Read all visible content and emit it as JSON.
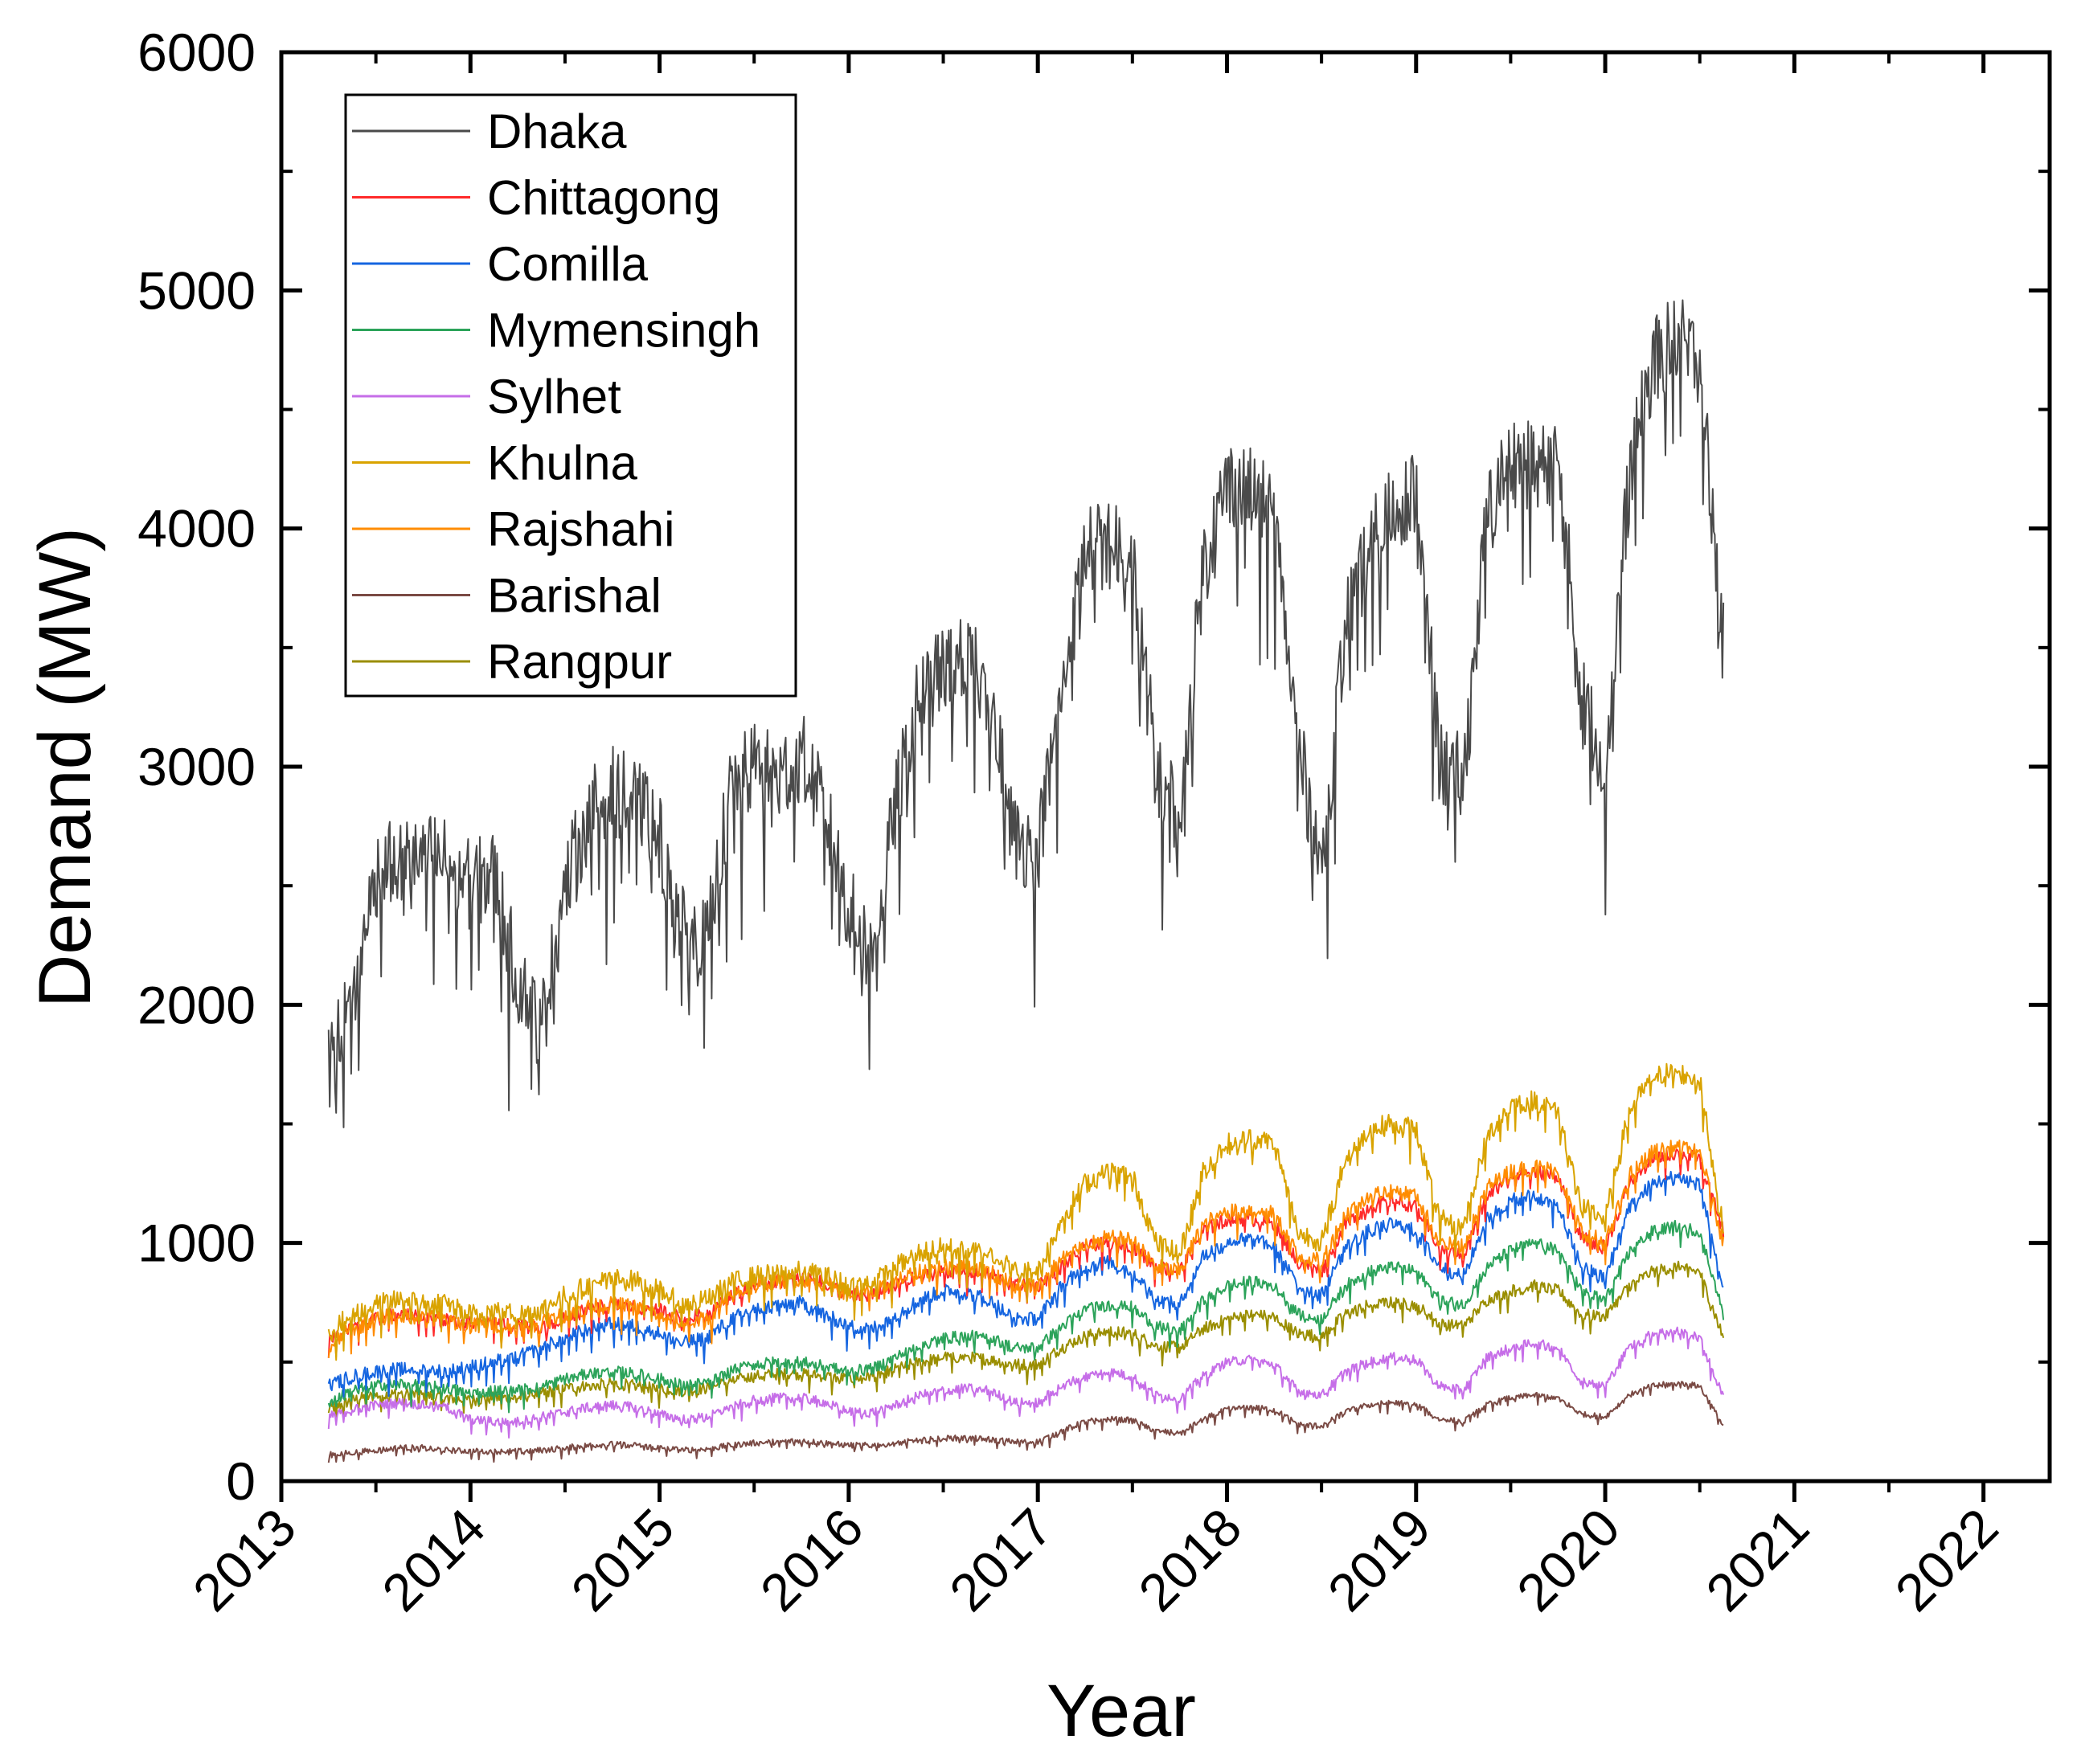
{
  "chart_data": {
    "type": "line",
    "title": "",
    "xlabel": "Year",
    "ylabel": "Demand (MW)",
    "xlim": [
      2013.0,
      2022.35
    ],
    "ylim": [
      0,
      6000
    ],
    "x_ticks": [
      2013,
      2014,
      2015,
      2016,
      2017,
      2018,
      2019,
      2020,
      2021,
      2022
    ],
    "x_tick_labels": [
      "2013",
      "2014",
      "2015",
      "2016",
      "2017",
      "2018",
      "2019",
      "2020",
      "2021",
      "2022"
    ],
    "y_ticks": [
      0,
      1000,
      2000,
      3000,
      4000,
      5000,
      6000
    ],
    "y_tick_labels": [
      "0",
      "1000",
      "2000",
      "3000",
      "4000",
      "5000",
      "6000"
    ],
    "grid": false,
    "legend_position": "top-left",
    "x_sample_start": 2013.25,
    "x_sample_step": 0.125,
    "series": [
      {
        "name": "Dhaka",
        "color": "#4a4a4a",
        "noise": 380,
        "values": [
          1750,
          2000,
          2550,
          2600,
          2650,
          2600,
          2500,
          2550,
          2100,
          1900,
          2500,
          2800,
          2900,
          2850,
          2700,
          2300,
          2250,
          2900,
          3000,
          2950,
          3050,
          2800,
          2400,
          2200,
          2850,
          3300,
          3400,
          3450,
          3300,
          2700,
          2650,
          3300,
          3900,
          3950,
          3850,
          3000,
          2800,
          3850,
          4200,
          4150,
          4050,
          3100,
          2550,
          3600,
          3900,
          4100,
          4150,
          3000,
          2950,
          4050,
          4300,
          4250,
          4300,
          3300,
          3000,
          4200,
          4700,
          4800,
          4700,
          3500
        ]
      },
      {
        "name": "Chittagong",
        "color": "#ff2a2a",
        "noise": 60,
        "values": [
          580,
          640,
          680,
          700,
          690,
          680,
          660,
          670,
          650,
          640,
          680,
          720,
          740,
          730,
          720,
          680,
          700,
          780,
          820,
          840,
          850,
          830,
          780,
          780,
          820,
          860,
          880,
          880,
          870,
          820,
          820,
          900,
          980,
          1000,
          990,
          900,
          880,
          1050,
          1100,
          1100,
          1080,
          920,
          880,
          1080,
          1150,
          1180,
          1150,
          980,
          940,
          1200,
          1280,
          1300,
          1280,
          1020,
          980,
          1250,
          1350,
          1380,
          1350,
          1050
        ]
      },
      {
        "name": "Comilla",
        "color": "#1565e0",
        "noise": 60,
        "values": [
          400,
          440,
          460,
          470,
          470,
          460,
          480,
          500,
          520,
          560,
          600,
          640,
          660,
          650,
          620,
          580,
          600,
          680,
          720,
          740,
          750,
          700,
          650,
          640,
          700,
          760,
          800,
          790,
          760,
          680,
          680,
          820,
          900,
          920,
          880,
          760,
          740,
          950,
          1000,
          1020,
          980,
          820,
          780,
          980,
          1050,
          1080,
          1050,
          900,
          860,
          1100,
          1180,
          1200,
          1150,
          900,
          850,
          1150,
          1250,
          1280,
          1250,
          800
        ]
      },
      {
        "name": "Mymensingh",
        "color": "#2ca35a",
        "noise": 50,
        "values": [
          330,
          380,
          400,
          410,
          400,
          390,
          370,
          380,
          380,
          400,
          430,
          450,
          460,
          450,
          430,
          400,
          410,
          460,
          490,
          500,
          500,
          480,
          460,
          470,
          520,
          570,
          600,
          610,
          600,
          560,
          560,
          650,
          720,
          740,
          730,
          650,
          630,
          760,
          820,
          840,
          820,
          700,
          680,
          820,
          880,
          900,
          880,
          760,
          740,
          900,
          970,
          1000,
          970,
          800,
          760,
          960,
          1050,
          1070,
          1050,
          700
        ]
      },
      {
        "name": "Sylhet",
        "color": "#c66ee8",
        "noise": 40,
        "values": [
          270,
          300,
          320,
          330,
          320,
          310,
          260,
          250,
          250,
          270,
          290,
          310,
          320,
          310,
          280,
          260,
          270,
          310,
          340,
          350,
          350,
          330,
          290,
          290,
          320,
          360,
          380,
          390,
          380,
          330,
          330,
          400,
          440,
          460,
          440,
          360,
          350,
          440,
          500,
          510,
          490,
          380,
          360,
          460,
          500,
          520,
          510,
          400,
          380,
          520,
          560,
          580,
          560,
          420,
          400,
          560,
          620,
          630,
          600,
          350
        ]
      },
      {
        "name": "Khulna",
        "color": "#d9a300",
        "noise": 90,
        "values": [
          620,
          700,
          740,
          760,
          750,
          740,
          700,
          720,
          700,
          720,
          780,
          820,
          850,
          840,
          800,
          740,
          760,
          830,
          860,
          870,
          880,
          860,
          820,
          830,
          900,
          960,
          980,
          970,
          960,
          880,
          880,
          1100,
          1250,
          1300,
          1280,
          1000,
          950,
          1300,
          1420,
          1440,
          1420,
          1050,
          1000,
          1350,
          1480,
          1500,
          1480,
          1100,
          1060,
          1450,
          1580,
          1600,
          1560,
          1150,
          1100,
          1550,
          1700,
          1720,
          1680,
          1050
        ]
      },
      {
        "name": "Rajshahi",
        "color": "#ff8c00",
        "noise": 70,
        "values": [
          560,
          640,
          680,
          700,
          690,
          680,
          650,
          660,
          640,
          660,
          700,
          730,
          740,
          730,
          700,
          660,
          680,
          780,
          820,
          840,
          850,
          830,
          790,
          790,
          840,
          880,
          900,
          900,
          880,
          820,
          820,
          930,
          1000,
          1020,
          1010,
          900,
          880,
          1080,
          1130,
          1140,
          1120,
          950,
          920,
          1120,
          1200,
          1220,
          1200,
          1000,
          980,
          1230,
          1300,
          1320,
          1300,
          1050,
          1000,
          1280,
          1380,
          1400,
          1380,
          1000
        ]
      },
      {
        "name": "Barishal",
        "color": "#7a4a44",
        "noise": 25,
        "values": [
          110,
          120,
          130,
          140,
          140,
          130,
          125,
          125,
          125,
          130,
          140,
          150,
          155,
          150,
          140,
          130,
          135,
          150,
          160,
          165,
          170,
          160,
          150,
          150,
          160,
          170,
          180,
          180,
          175,
          165,
          165,
          210,
          250,
          260,
          255,
          210,
          200,
          260,
          300,
          310,
          300,
          240,
          230,
          290,
          320,
          330,
          320,
          260,
          250,
          320,
          350,
          360,
          350,
          280,
          270,
          360,
          400,
          410,
          400,
          230
        ]
      },
      {
        "name": "Rangpur",
        "color": "#9a8e00",
        "noise": 50,
        "values": [
          300,
          340,
          360,
          370,
          360,
          350,
          340,
          350,
          350,
          370,
          390,
          400,
          410,
          400,
          390,
          380,
          390,
          420,
          440,
          450,
          450,
          440,
          430,
          440,
          470,
          500,
          520,
          520,
          510,
          490,
          490,
          560,
          610,
          630,
          620,
          570,
          560,
          640,
          680,
          700,
          690,
          620,
          610,
          700,
          740,
          750,
          740,
          660,
          650,
          760,
          800,
          820,
          800,
          700,
          690,
          820,
          880,
          900,
          880,
          600
        ]
      }
    ]
  }
}
